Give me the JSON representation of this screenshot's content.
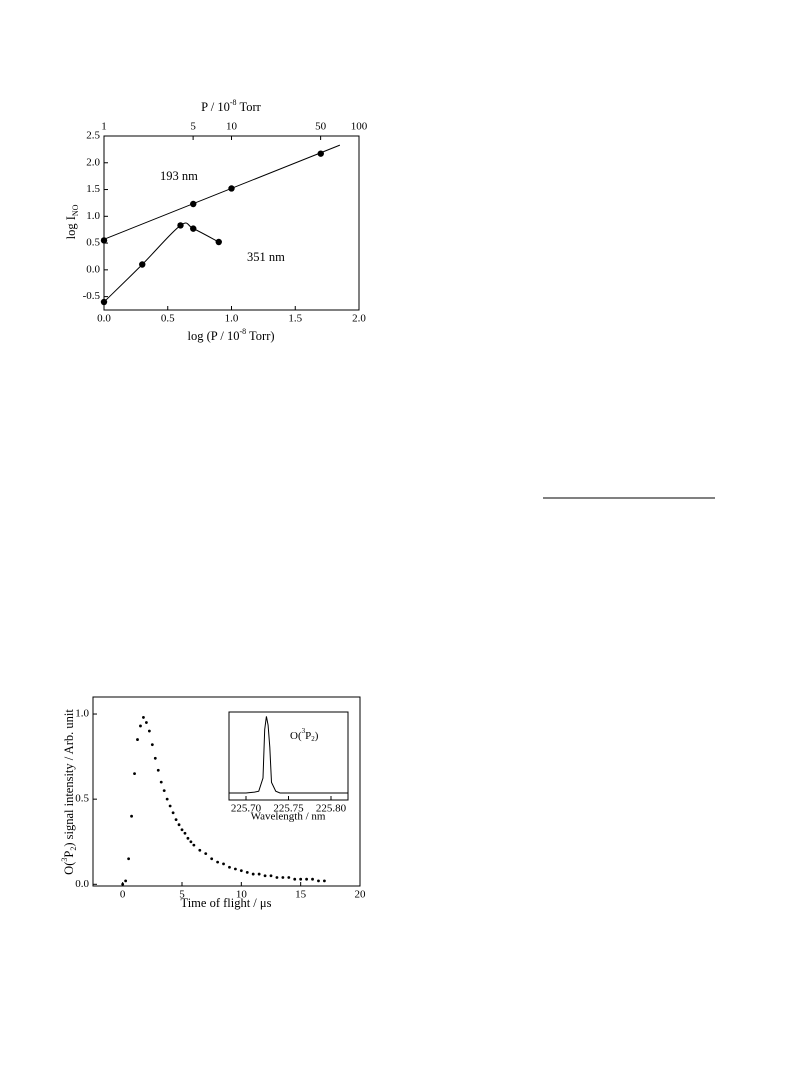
{
  "chart_data": [
    {
      "type": "scatter",
      "x_label": [
        "log (P / 10",
        "-8",
        " Torr)"
      ],
      "x2_label": [
        "P / 10",
        "-8",
        " Torr"
      ],
      "y_label": [
        "log I",
        "NO"
      ],
      "xlim": [
        0,
        2.0
      ],
      "xticks": [
        {
          "value": 0,
          "label": "0.0"
        },
        0.5,
        {
          "value": 1,
          "label": "1.0"
        },
        1.5,
        {
          "value": 2,
          "label": "2.0"
        }
      ],
      "x2lim": [
        1,
        100
      ],
      "x2log": true,
      "x2ticks": [
        1,
        5,
        10,
        50,
        100
      ],
      "ylim": [
        -0.75,
        2.5
      ],
      "yticks": [
        -0.5,
        {
          "value": 0,
          "label": "0.0"
        },
        0.5,
        {
          "value": 1,
          "label": "1.0"
        },
        1.5,
        {
          "value": 2,
          "label": "2.0"
        },
        2.5
      ],
      "color": "#000000",
      "series": [
        {
          "name": "193 nm",
          "x": [
            0,
            0.7,
            1.0,
            1.7
          ],
          "values": [
            0.55,
            1.23,
            1.52,
            2.17
          ],
          "fit": {
            "x": [
              0,
              1.85
            ],
            "values": [
              0.57,
              2.33
            ]
          }
        },
        {
          "name": "351 nm",
          "x": [
            0,
            0.3,
            0.6,
            0.7,
            0.9
          ],
          "values": [
            -0.6,
            0.1,
            0.83,
            0.77,
            0.52
          ],
          "curve": "smooth"
        }
      ]
    },
    {
      "type": "scatter",
      "x_label": "Time of flight / μs",
      "y_label": [
        "O(",
        "3",
        "P",
        "2",
        ") signal intensity / Arb. unit"
      ],
      "xlim": [
        -2.5,
        20
      ],
      "xticks": [
        0,
        5,
        10,
        15,
        20
      ],
      "ylim": [
        -0.01,
        1.1
      ],
      "yticks": [
        {
          "value": 0,
          "label": "0.0"
        },
        0.5,
        {
          "value": 1,
          "label": "1.0"
        }
      ],
      "color": "#000000",
      "x": [
        0,
        0.25,
        0.5,
        0.75,
        1,
        1.25,
        1.5,
        1.75,
        2,
        2.25,
        2.5,
        2.75,
        3,
        3.25,
        3.5,
        3.75,
        4,
        4.25,
        4.5,
        4.75,
        5,
        5.25,
        5.5,
        5.75,
        6,
        6.5,
        7,
        7.5,
        8,
        8.5,
        9,
        9.5,
        10,
        10.5,
        11,
        11.5,
        12,
        12.5,
        13,
        13.5,
        14,
        14.5,
        15,
        15.5,
        16,
        16.5,
        17
      ],
      "values": [
        0,
        0.02,
        0.15,
        0.4,
        0.65,
        0.85,
        0.93,
        0.98,
        0.95,
        0.9,
        0.82,
        0.74,
        0.67,
        0.6,
        0.55,
        0.5,
        0.46,
        0.42,
        0.38,
        0.35,
        0.32,
        0.3,
        0.27,
        0.25,
        0.23,
        0.2,
        0.18,
        0.15,
        0.13,
        0.12,
        0.1,
        0.09,
        0.08,
        0.07,
        0.06,
        0.06,
        0.05,
        0.05,
        0.04,
        0.04,
        0.04,
        0.03,
        0.03,
        0.03,
        0.03,
        0.02,
        0.02
      ],
      "inset": {
        "type": "line",
        "annotation": [
          "O(",
          "3",
          "P",
          "2",
          ")"
        ],
        "x_label": "Wavelength / nm",
        "xlim": [
          225.68,
          225.82
        ],
        "xticks": [
          {
            "value": 225.7,
            "label": "225.70"
          },
          {
            "value": 225.75,
            "label": "225.75"
          },
          {
            "value": 225.8,
            "label": "225.80"
          }
        ],
        "ylim": [
          0,
          1
        ],
        "color": "#000000",
        "x": [
          225.68,
          225.7,
          225.71,
          225.715,
          225.72,
          225.722,
          225.724,
          225.726,
          225.728,
          225.73,
          225.735,
          225.74,
          225.76,
          225.78,
          225.8,
          225.82
        ],
        "values": [
          0.08,
          0.08,
          0.09,
          0.1,
          0.25,
          0.8,
          0.95,
          0.85,
          0.6,
          0.2,
          0.1,
          0.08,
          0.08,
          0.08,
          0.08,
          0.08
        ]
      }
    }
  ]
}
